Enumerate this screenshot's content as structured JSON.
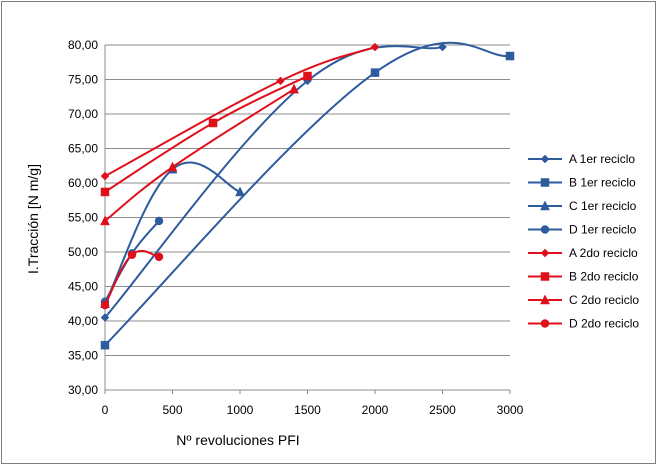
{
  "chart_data": {
    "type": "line",
    "title": "",
    "xlabel": "Nº revoluciones PFI",
    "ylabel": "I.Tracción [N m/g]",
    "xlim": [
      0,
      3000
    ],
    "ylim": [
      30,
      80
    ],
    "x_ticks": [
      "0",
      "500",
      "1000",
      "1500",
      "2000",
      "2500",
      "3000"
    ],
    "y_ticks": [
      "30,00",
      "35,00",
      "40,00",
      "45,00",
      "50,00",
      "55,00",
      "60,00",
      "65,00",
      "70,00",
      "75,00",
      "80,00"
    ],
    "grid": "horizontal",
    "legend_position": "right",
    "series": [
      {
        "name": "A 1er reciclo",
        "color": "#2e5b9e",
        "marker": "diamond",
        "points": [
          [
            0,
            40.5
          ],
          [
            1500,
            74.8
          ],
          [
            2500,
            79.7
          ]
        ]
      },
      {
        "name": "B 1er reciclo",
        "color": "#2e5b9e",
        "marker": "square",
        "points": [
          [
            0,
            36.5
          ],
          [
            2000,
            76.0
          ],
          [
            3000,
            78.4
          ]
        ]
      },
      {
        "name": "C 1er reciclo",
        "color": "#2e5b9e",
        "marker": "triangle",
        "points": [
          [
            0,
            42.5
          ],
          [
            500,
            62.0
          ],
          [
            1000,
            58.7
          ]
        ]
      },
      {
        "name": "D 1er reciclo",
        "color": "#2e5b9e",
        "marker": "circle",
        "points": [
          [
            0,
            42.8
          ],
          [
            200,
            49.8
          ],
          [
            400,
            54.5
          ]
        ]
      },
      {
        "name": "A 2do reciclo",
        "color": "#e0101b",
        "marker": "diamond",
        "points": [
          [
            0,
            61.0
          ],
          [
            1300,
            74.8
          ],
          [
            2000,
            79.7
          ]
        ]
      },
      {
        "name": "B 2do reciclo",
        "color": "#e0101b",
        "marker": "square",
        "points": [
          [
            0,
            58.7
          ],
          [
            800,
            68.7
          ],
          [
            1500,
            75.5
          ]
        ]
      },
      {
        "name": "C 2do reciclo",
        "color": "#e0101b",
        "marker": "triangle",
        "points": [
          [
            0,
            54.5
          ],
          [
            500,
            62.3
          ],
          [
            1400,
            73.6
          ]
        ]
      },
      {
        "name": "D 2do reciclo",
        "color": "#e0101b",
        "marker": "circle",
        "points": [
          [
            0,
            42.3
          ],
          [
            200,
            49.6
          ],
          [
            400,
            49.3
          ]
        ]
      }
    ]
  }
}
